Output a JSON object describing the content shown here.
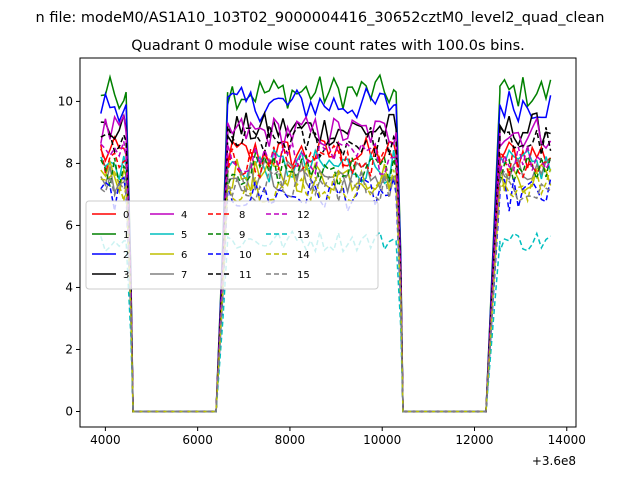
{
  "chart_data": {
    "type": "line",
    "suptitle": "n file: modeM0/AS1A10_103T02_9000004416_30652cztM0_level2_quad_clean",
    "title": "Quadrant 0 module wise count rates with 100.0s bins.",
    "xlabel": "",
    "ylabel": "",
    "x_offset_label": "+3.6e8",
    "xlim": [
      3450,
      14200
    ],
    "ylim": [
      -0.5,
      11.4
    ],
    "xticks": [
      4000,
      6000,
      8000,
      10000,
      12000,
      14000
    ],
    "yticks": [
      0,
      2,
      4,
      6,
      8,
      10
    ],
    "legend": {
      "placement": "center-left",
      "columns": 5
    },
    "active_segments": [
      [
        3900,
        4450
      ],
      [
        6650,
        10300
      ],
      [
        12550,
        13650
      ]
    ],
    "ramps": [
      {
        "from": [
          4450,
          1.0
        ],
        "to": [
          4550,
          0.45
        ],
        "then": [
          4600,
          0
        ]
      },
      {
        "from": [
          6400,
          0
        ],
        "to": [
          6550,
          0.55
        ],
        "then": [
          6650,
          1.0
        ]
      },
      {
        "from": [
          10300,
          1.0
        ],
        "to": [
          10400,
          0.5
        ],
        "then": [
          10450,
          0
        ]
      },
      {
        "from": [
          12250,
          0
        ],
        "to": [
          12400,
          0.5
        ],
        "then": [
          12550,
          1.0
        ]
      }
    ],
    "series": [
      {
        "name": "0",
        "color": "#ff0000",
        "style": "solid",
        "level": 8.3
      },
      {
        "name": "1",
        "color": "#008000",
        "style": "solid",
        "level": 10.3
      },
      {
        "name": "2",
        "color": "#0000ff",
        "style": "solid",
        "level": 9.9
      },
      {
        "name": "3",
        "color": "#000000",
        "style": "solid",
        "level": 9.1
      },
      {
        "name": "4",
        "color": "#bf00bf",
        "style": "solid",
        "level": 9.0
      },
      {
        "name": "5",
        "color": "#00bfbf",
        "style": "solid",
        "level": 7.9
      },
      {
        "name": "6",
        "color": "#bfbf00",
        "style": "solid",
        "level": 7.6
      },
      {
        "name": "7",
        "color": "#808080",
        "style": "solid",
        "level": 7.6
      },
      {
        "name": "8",
        "color": "#ff0000",
        "style": "dashed",
        "level": 8.1
      },
      {
        "name": "9",
        "color": "#008000",
        "style": "dashed",
        "level": 7.8
      },
      {
        "name": "10",
        "color": "#0000ff",
        "style": "dashed",
        "level": 7.0
      },
      {
        "name": "11",
        "color": "#000000",
        "style": "dashed",
        "level": 8.7
      },
      {
        "name": "12",
        "color": "#bf00bf",
        "style": "dashed",
        "level": 8.2
      },
      {
        "name": "13",
        "color": "#00bfbf",
        "style": "dashed",
        "level": 5.5
      },
      {
        "name": "14",
        "color": "#bfbf00",
        "style": "dashed",
        "level": 7.3
      },
      {
        "name": "15",
        "color": "#808080",
        "style": "dashed",
        "level": 7.3
      }
    ]
  }
}
